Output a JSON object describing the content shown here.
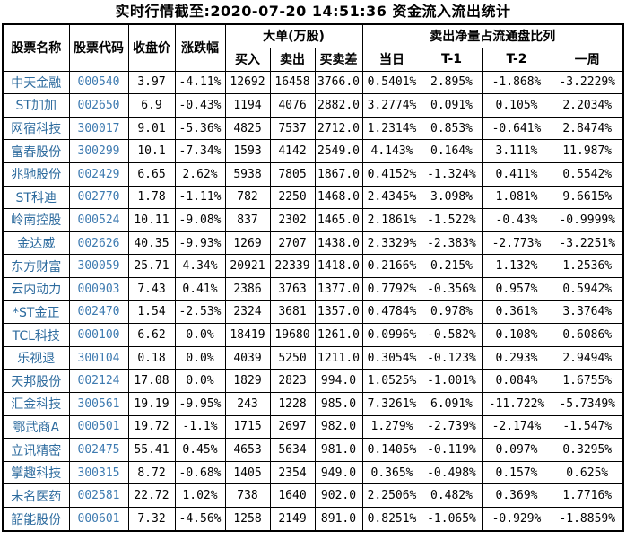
{
  "title": "实时行情截至:2020-07-20 14:51:36 资金流入流出统计",
  "table": {
    "headers": [
      "股票名称",
      "股票代码",
      "收盘价",
      "涨跌幅"
    ],
    "groups": [
      {
        "label": "大单(万股)",
        "children": [
          "买入",
          "卖出",
          "买卖差"
        ]
      },
      {
        "label": "卖出净量占流通盘比列",
        "children": [
          "当日",
          "T-1",
          "T-2",
          "一周"
        ]
      }
    ],
    "cell_names": [
      "stock-name",
      "stock-code",
      "close-price",
      "change-percent",
      "buy-volume",
      "sell-volume",
      "buy-sell-diff",
      "ratio-today",
      "ratio-t1",
      "ratio-t2",
      "ratio-week"
    ],
    "rows": [
      [
        "中天金融",
        "000540",
        "3.97",
        "-4.11%",
        "12692",
        "16458",
        "3766.0",
        "0.5401%",
        "2.895%",
        "-1.868%",
        "-3.2229%"
      ],
      [
        "ST加加",
        "002650",
        "6.9",
        "-0.43%",
        "1194",
        "4076",
        "2882.0",
        "3.2774%",
        "0.091%",
        "0.105%",
        "2.2034%"
      ],
      [
        "网宿科技",
        "300017",
        "9.01",
        "-5.36%",
        "4825",
        "7537",
        "2712.0",
        "1.2314%",
        "0.853%",
        "-0.641%",
        "2.8474%"
      ],
      [
        "富春股份",
        "300299",
        "10.1",
        "-7.34%",
        "1593",
        "4142",
        "2549.0",
        "4.143%",
        "0.164%",
        "3.111%",
        "11.987%"
      ],
      [
        "兆驰股份",
        "002429",
        "6.65",
        "2.62%",
        "5938",
        "7805",
        "1867.0",
        "0.4152%",
        "-1.324%",
        "0.411%",
        "0.5542%"
      ],
      [
        "ST科迪",
        "002770",
        "1.78",
        "-1.11%",
        "782",
        "2250",
        "1468.0",
        "2.4345%",
        "3.098%",
        "1.081%",
        "9.6615%"
      ],
      [
        "岭南控股",
        "000524",
        "10.11",
        "-9.08%",
        "837",
        "2302",
        "1465.0",
        "2.1861%",
        "-1.522%",
        "-0.43%",
        "-0.9999%"
      ],
      [
        "金达威",
        "002626",
        "40.35",
        "-9.93%",
        "1269",
        "2707",
        "1438.0",
        "2.3329%",
        "-2.383%",
        "-2.773%",
        "-3.2251%"
      ],
      [
        "东方财富",
        "300059",
        "25.71",
        "4.34%",
        "20921",
        "22339",
        "1418.0",
        "0.2166%",
        "0.215%",
        "1.132%",
        "1.2536%"
      ],
      [
        "云内动力",
        "000903",
        "7.43",
        "0.41%",
        "2386",
        "3763",
        "1377.0",
        "0.7792%",
        "-0.356%",
        "0.957%",
        "0.5942%"
      ],
      [
        "*ST金正",
        "002470",
        "1.54",
        "-2.53%",
        "2324",
        "3681",
        "1357.0",
        "0.4784%",
        "0.978%",
        "0.361%",
        "3.3764%"
      ],
      [
        "TCL科技",
        "000100",
        "6.62",
        "0.0%",
        "18419",
        "19680",
        "1261.0",
        "0.0996%",
        "-0.582%",
        "0.108%",
        "0.6086%"
      ],
      [
        "乐视退",
        "300104",
        "0.18",
        "0.0%",
        "4039",
        "5250",
        "1211.0",
        "0.3054%",
        "-0.123%",
        "0.293%",
        "2.9494%"
      ],
      [
        "天邦股份",
        "002124",
        "17.08",
        "0.0%",
        "1829",
        "2823",
        "994.0",
        "1.0525%",
        "-1.001%",
        "0.084%",
        "1.6755%"
      ],
      [
        "汇金科技",
        "300561",
        "19.19",
        "-9.95%",
        "243",
        "1228",
        "985.0",
        "7.3261%",
        "6.091%",
        "-11.722%",
        "-5.7349%"
      ],
      [
        "鄂武商A",
        "000501",
        "19.72",
        "-1.1%",
        "1715",
        "2697",
        "982.0",
        "1.279%",
        "-2.739%",
        "-2.174%",
        "-1.547%"
      ],
      [
        "立讯精密",
        "002475",
        "55.41",
        "0.45%",
        "4653",
        "5634",
        "981.0",
        "0.1405%",
        "-0.119%",
        "0.097%",
        "0.3295%"
      ],
      [
        "掌趣科技",
        "300315",
        "8.72",
        "-0.68%",
        "1405",
        "2354",
        "949.0",
        "0.365%",
        "-0.498%",
        "0.157%",
        "0.625%"
      ],
      [
        "未名医药",
        "002581",
        "22.72",
        "1.02%",
        "738",
        "1640",
        "902.0",
        "2.2506%",
        "0.482%",
        "0.369%",
        "1.7716%"
      ],
      [
        "韶能股份",
        "000601",
        "7.32",
        "-4.56%",
        "1258",
        "2149",
        "891.0",
        "0.8251%",
        "-1.065%",
        "-0.929%",
        "-1.8859%"
      ]
    ]
  },
  "colors": {
    "stock_name_blue": "#2d6b9e",
    "stock_code_blue": "#3d7ab0",
    "number_text": "#000000",
    "header_text": "#000000",
    "border": "#000000",
    "background": "#ffffff"
  }
}
